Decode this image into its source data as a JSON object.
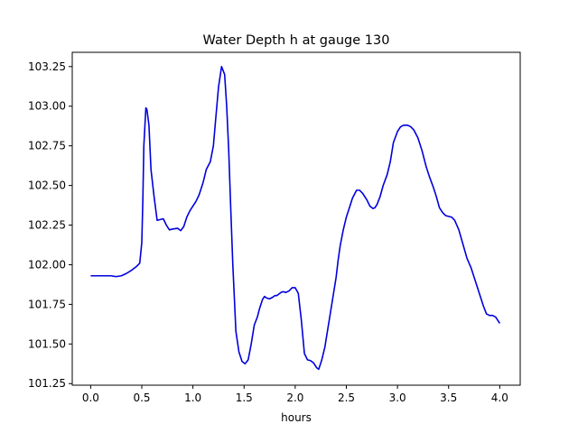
{
  "chart_data": {
    "type": "line",
    "title": "Water Depth h at gauge 130",
    "xlabel": "hours",
    "ylabel": "",
    "xlim": [
      -0.18,
      4.2
    ],
    "ylim": [
      101.24,
      103.34
    ],
    "xticks": [
      "0.0",
      "0.5",
      "1.0",
      "1.5",
      "2.0",
      "2.5",
      "3.0",
      "3.5",
      "4.0"
    ],
    "yticks": [
      "101.25",
      "101.50",
      "101.75",
      "102.00",
      "102.25",
      "102.50",
      "102.75",
      "103.00",
      "103.25"
    ],
    "grid": false,
    "colors": {
      "line": "#0000dd",
      "axes": "#000000"
    },
    "series": [
      {
        "x": [
          0.0,
          0.1,
          0.2,
          0.25,
          0.3,
          0.35,
          0.4,
          0.45,
          0.48,
          0.5,
          0.51,
          0.52,
          0.54,
          0.55,
          0.57,
          0.59,
          0.62,
          0.65,
          0.68,
          0.71,
          0.74,
          0.77,
          0.8,
          0.85,
          0.88,
          0.91,
          0.94,
          0.97,
          1.0,
          1.03,
          1.06,
          1.1,
          1.13,
          1.17,
          1.2,
          1.22,
          1.25,
          1.28,
          1.31,
          1.33,
          1.35,
          1.37,
          1.39,
          1.42,
          1.45,
          1.48,
          1.51,
          1.54,
          1.57,
          1.6,
          1.63,
          1.65,
          1.68,
          1.7,
          1.72,
          1.75,
          1.78,
          1.8,
          1.82,
          1.84,
          1.86,
          1.88,
          1.91,
          1.94,
          1.97,
          2.0,
          2.03,
          2.06,
          2.09,
          2.12,
          2.15,
          2.18,
          2.21,
          2.23,
          2.26,
          2.29,
          2.31,
          2.34,
          2.37,
          2.4,
          2.42,
          2.44,
          2.47,
          2.5,
          2.53,
          2.56,
          2.6,
          2.63,
          2.66,
          2.7,
          2.73,
          2.76,
          2.78,
          2.8,
          2.83,
          2.86,
          2.9,
          2.93,
          2.96,
          3.0,
          3.03,
          3.06,
          3.1,
          3.13,
          3.16,
          3.2,
          3.24,
          3.28,
          3.31,
          3.35,
          3.38,
          3.41,
          3.44,
          3.47,
          3.5,
          3.53,
          3.56,
          3.6,
          3.64,
          3.68,
          3.72,
          3.76,
          3.8,
          3.84,
          3.87,
          3.9,
          3.93,
          3.96,
          4.0
        ],
        "values": [
          101.93,
          101.93,
          101.93,
          101.925,
          101.93,
          101.945,
          101.965,
          101.99,
          102.01,
          102.14,
          102.4,
          102.75,
          102.99,
          102.98,
          102.88,
          102.6,
          102.43,
          102.28,
          102.285,
          102.29,
          102.25,
          102.22,
          102.225,
          102.23,
          102.215,
          102.24,
          102.3,
          102.34,
          102.37,
          102.4,
          102.44,
          102.52,
          102.6,
          102.65,
          102.75,
          102.9,
          103.12,
          103.25,
          103.2,
          103.0,
          102.72,
          102.35,
          102.0,
          101.58,
          101.45,
          101.39,
          101.375,
          101.4,
          101.5,
          101.62,
          101.67,
          101.72,
          101.78,
          101.8,
          101.79,
          101.785,
          101.795,
          101.805,
          101.805,
          101.815,
          101.825,
          101.83,
          101.825,
          101.835,
          101.855,
          101.855,
          101.82,
          101.65,
          101.44,
          101.4,
          101.395,
          101.38,
          101.35,
          101.34,
          101.4,
          101.48,
          101.56,
          101.68,
          101.8,
          101.92,
          102.03,
          102.12,
          102.22,
          102.3,
          102.36,
          102.42,
          102.47,
          102.47,
          102.45,
          102.41,
          102.37,
          102.355,
          102.36,
          102.38,
          102.43,
          102.5,
          102.57,
          102.65,
          102.77,
          102.84,
          102.87,
          102.88,
          102.88,
          102.87,
          102.85,
          102.8,
          102.72,
          102.62,
          102.56,
          102.49,
          102.43,
          102.36,
          102.33,
          102.31,
          102.305,
          102.3,
          102.28,
          102.22,
          102.13,
          102.04,
          101.98,
          101.9,
          101.82,
          101.74,
          101.69,
          101.68,
          101.68,
          101.67,
          101.63
        ]
      }
    ]
  }
}
